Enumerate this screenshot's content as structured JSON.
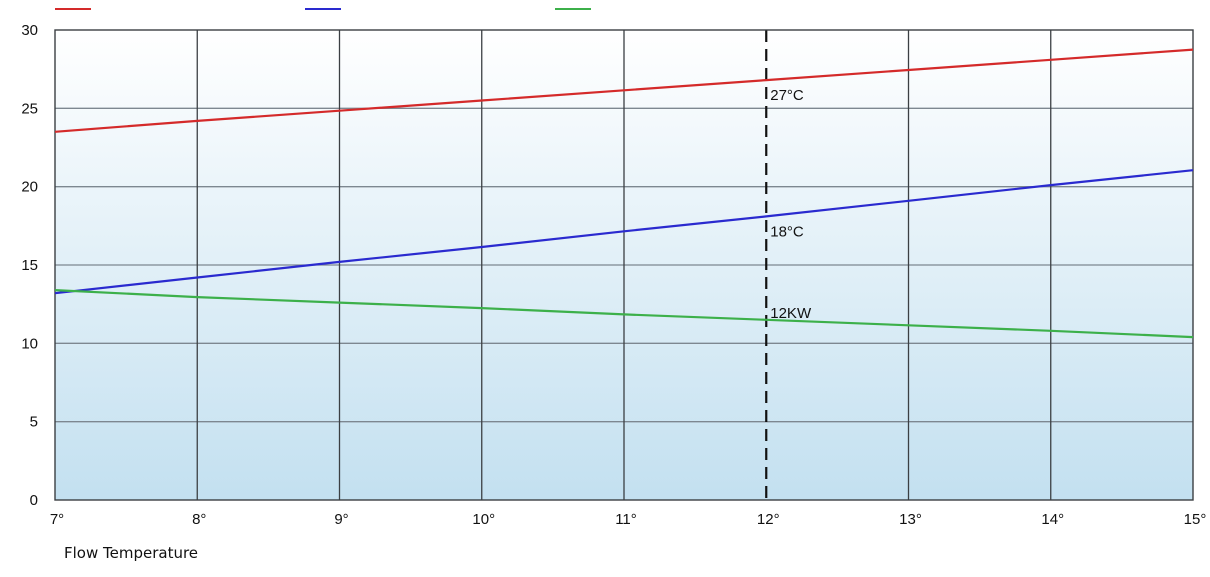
{
  "chart_data": {
    "type": "line",
    "title": "",
    "xlabel": "Flow Temperature",
    "ylabel": "",
    "x": [
      7,
      8,
      9,
      10,
      11,
      12,
      13,
      14,
      15
    ],
    "x_tick_labels": [
      "7°",
      "8°",
      "9°",
      "10°",
      "11°",
      "12°",
      "13°",
      "14°",
      "15°"
    ],
    "y_ticks": [
      0,
      5,
      10,
      15,
      20,
      25,
      30
    ],
    "xlim": [
      7,
      15
    ],
    "ylim": [
      0,
      30
    ],
    "grid": true,
    "legend_placement": "top",
    "background": "light-blue gradient (white at top)",
    "series": [
      {
        "color": "#d42a2a",
        "values": [
          23.5,
          24.2,
          24.85,
          25.5,
          26.15,
          26.8,
          27.45,
          28.1,
          28.75
        ]
      },
      {
        "color": "#2a2acf",
        "values": [
          13.2,
          14.2,
          15.2,
          16.15,
          17.15,
          18.1,
          19.1,
          20.1,
          21.05
        ]
      },
      {
        "color": "#3cb04a",
        "values": [
          13.4,
          12.95,
          12.6,
          12.25,
          11.85,
          11.5,
          11.15,
          10.8,
          10.4
        ]
      }
    ],
    "marker_line": {
      "x": 12,
      "style": "dashed"
    },
    "annotations": [
      {
        "text": "27°C",
        "x": 12,
        "y": 26.8
      },
      {
        "text": "18°C",
        "x": 12,
        "y": 18.1
      },
      {
        "text": "12KW",
        "x": 12,
        "y": 11.5
      }
    ]
  }
}
